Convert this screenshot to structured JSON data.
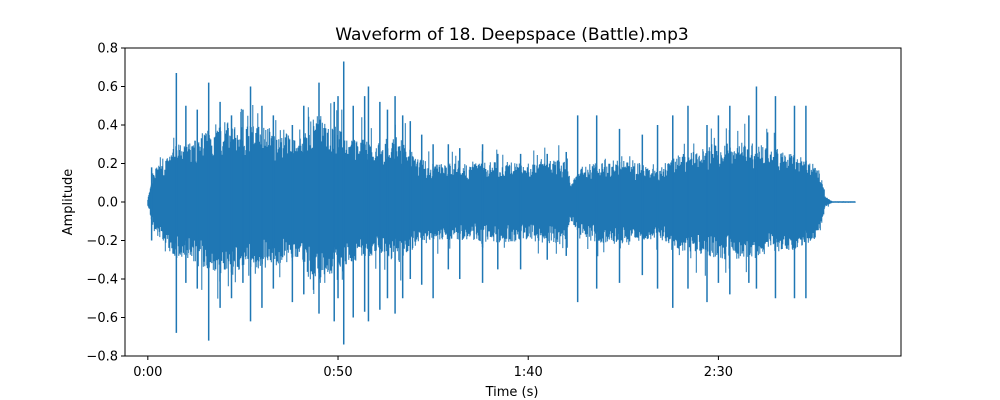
{
  "chart_data": {
    "type": "line",
    "title": "Waveform of 18. Deepspace (Battle).mp3",
    "xlabel": "Time (s)",
    "ylabel": "Amplitude",
    "xlim": [
      -6,
      198
    ],
    "ylim": [
      -0.8,
      0.8
    ],
    "x_ticks": [
      {
        "value": 0,
        "label": "0:00"
      },
      {
        "value": 50,
        "label": "0:50"
      },
      {
        "value": 100,
        "label": "1:40"
      },
      {
        "value": 150,
        "label": "2:30"
      }
    ],
    "y_ticks": [
      {
        "value": -0.8,
        "label": "−0.8"
      },
      {
        "value": -0.6,
        "label": "−0.6"
      },
      {
        "value": -0.4,
        "label": "−0.4"
      },
      {
        "value": -0.2,
        "label": "−0.2"
      },
      {
        "value": 0.0,
        "label": "0.0"
      },
      {
        "value": 0.2,
        "label": "0.2"
      },
      {
        "value": 0.4,
        "label": "0.4"
      },
      {
        "value": 0.6,
        "label": "0.6"
      },
      {
        "value": 0.8,
        "label": "0.8"
      }
    ],
    "grid": false,
    "series": [
      {
        "color": "#1f77b4",
        "envelope": {
          "time": [
            0,
            2,
            4,
            6,
            8,
            10,
            12,
            14,
            16,
            20,
            25,
            30,
            35,
            40,
            41,
            42,
            44,
            46,
            48,
            50,
            52,
            56,
            60,
            64,
            66,
            68,
            70,
            72,
            76,
            80,
            85,
            90,
            95,
            100,
            105,
            110,
            111,
            112,
            114,
            116,
            120,
            125,
            130,
            135,
            140,
            145,
            150,
            155,
            160,
            165,
            170,
            173,
            175,
            177,
            178,
            180,
            186
          ],
          "upper": [
            0.02,
            0.18,
            0.2,
            0.27,
            0.3,
            0.3,
            0.32,
            0.35,
            0.4,
            0.42,
            0.4,
            0.4,
            0.38,
            0.3,
            0.35,
            0.42,
            0.45,
            0.45,
            0.42,
            0.38,
            0.35,
            0.33,
            0.3,
            0.32,
            0.35,
            0.3,
            0.25,
            0.22,
            0.2,
            0.2,
            0.2,
            0.21,
            0.21,
            0.2,
            0.22,
            0.22,
            0.1,
            0.12,
            0.18,
            0.2,
            0.22,
            0.22,
            0.2,
            0.2,
            0.25,
            0.28,
            0.3,
            0.32,
            0.3,
            0.28,
            0.25,
            0.22,
            0.2,
            0.15,
            0.03,
            0.003,
            0.003
          ],
          "lower": [
            -0.02,
            -0.18,
            -0.2,
            -0.27,
            -0.3,
            -0.3,
            -0.32,
            -0.35,
            -0.38,
            -0.38,
            -0.35,
            -0.35,
            -0.33,
            -0.28,
            -0.32,
            -0.4,
            -0.42,
            -0.42,
            -0.4,
            -0.36,
            -0.33,
            -0.3,
            -0.28,
            -0.3,
            -0.32,
            -0.28,
            -0.24,
            -0.22,
            -0.2,
            -0.2,
            -0.2,
            -0.21,
            -0.21,
            -0.2,
            -0.22,
            -0.22,
            -0.1,
            -0.12,
            -0.18,
            -0.2,
            -0.22,
            -0.22,
            -0.2,
            -0.2,
            -0.25,
            -0.28,
            -0.3,
            -0.3,
            -0.28,
            -0.26,
            -0.25,
            -0.22,
            -0.2,
            -0.15,
            -0.03,
            -0.003,
            -0.003
          ]
        },
        "peaks": [
          [
            1,
            0.18,
            -0.2
          ],
          [
            7.5,
            0.67,
            -0.68
          ],
          [
            10,
            0.5,
            -0.42
          ],
          [
            13,
            0.48,
            -0.45
          ],
          [
            16,
            0.62,
            -0.72
          ],
          [
            19,
            0.52,
            -0.55
          ],
          [
            22,
            0.45,
            -0.5
          ],
          [
            25,
            0.48,
            -0.42
          ],
          [
            27,
            0.6,
            -0.62
          ],
          [
            30,
            0.5,
            -0.55
          ],
          [
            33,
            0.45,
            -0.45
          ],
          [
            38,
            0.4,
            -0.52
          ],
          [
            41,
            0.5,
            -0.48
          ],
          [
            45,
            0.62,
            -0.58
          ],
          [
            49,
            0.52,
            -0.62
          ],
          [
            50,
            0.55,
            -0.5
          ],
          [
            51.5,
            0.73,
            -0.74
          ],
          [
            54,
            0.5,
            -0.6
          ],
          [
            57,
            0.55,
            -0.57
          ],
          [
            58,
            0.6,
            -0.62
          ],
          [
            61,
            0.52,
            -0.56
          ],
          [
            63,
            0.48,
            -0.5
          ],
          [
            65,
            0.55,
            -0.58
          ],
          [
            67,
            0.45,
            -0.5
          ],
          [
            69,
            0.42,
            -0.4
          ],
          [
            72,
            0.35,
            -0.43
          ],
          [
            75,
            0.3,
            -0.5
          ],
          [
            79,
            0.3,
            -0.35
          ],
          [
            82,
            0.28,
            -0.4
          ],
          [
            88,
            0.3,
            -0.42
          ],
          [
            92,
            0.25,
            -0.35
          ],
          [
            98,
            0.25,
            -0.35
          ],
          [
            105,
            0.25,
            -0.3
          ],
          [
            110,
            0.26,
            -0.28
          ],
          [
            113,
            0.45,
            -0.52
          ],
          [
            118,
            0.45,
            -0.45
          ],
          [
            124,
            0.38,
            -0.42
          ],
          [
            130,
            0.35,
            -0.38
          ],
          [
            134,
            0.4,
            -0.45
          ],
          [
            138,
            0.45,
            -0.55
          ],
          [
            142,
            0.5,
            -0.45
          ],
          [
            147,
            0.4,
            -0.52
          ],
          [
            150,
            0.45,
            -0.42
          ],
          [
            153,
            0.5,
            -0.48
          ],
          [
            158,
            0.45,
            -0.42
          ],
          [
            160,
            0.6,
            -0.45
          ],
          [
            165,
            0.55,
            -0.5
          ],
          [
            170,
            0.5,
            -0.5
          ],
          [
            173,
            0.5,
            -0.5
          ]
        ]
      }
    ]
  }
}
